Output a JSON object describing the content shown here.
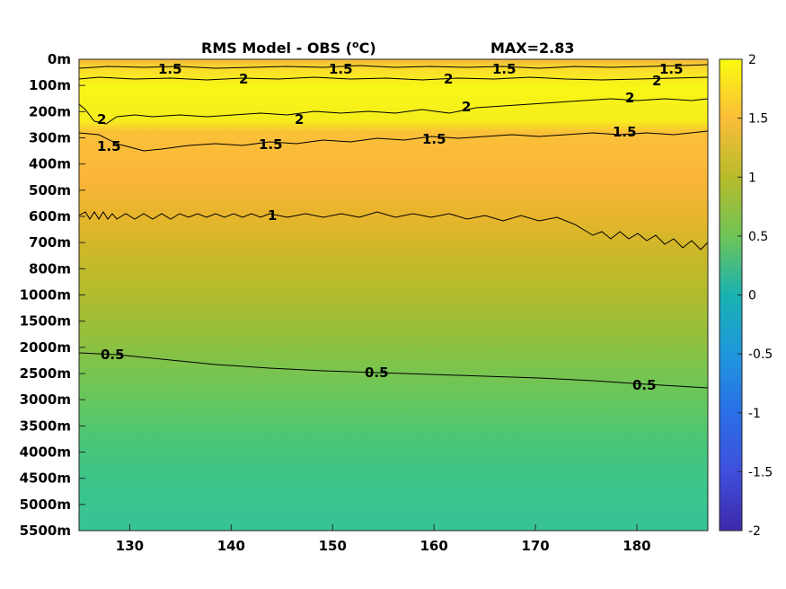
{
  "chart_data": {
    "type": "heatmap",
    "title": "RMS Model - OBS (",
    "title_unit_degree": "o",
    "title_unit_suffix": "C)",
    "annotation": "MAX=2.83",
    "x_ticks": [
      "130",
      "140",
      "150",
      "160",
      "170",
      "180"
    ],
    "x_tick_values": [
      130,
      140,
      150,
      160,
      170,
      180
    ],
    "xlim": [
      125,
      187
    ],
    "y_ticks": [
      "0m",
      "100m",
      "200m",
      "300m",
      "400m",
      "500m",
      "600m",
      "700m",
      "800m",
      "1000m",
      "1500m",
      "2000m",
      "2500m",
      "3000m",
      "3500m",
      "4000m",
      "4500m",
      "5000m",
      "5500m"
    ],
    "colorbar": {
      "range": [
        -2,
        2
      ],
      "ticks": [
        "2",
        "1.5",
        "1",
        "0.5",
        "0",
        "-0.5",
        "-1",
        "-1.5",
        "-2"
      ],
      "tick_values": [
        2,
        1.5,
        1,
        0.5,
        0,
        -0.5,
        -1,
        -1.5,
        -2
      ],
      "colormap": "parula",
      "position": "right"
    },
    "depth_profile": [
      {
        "depth": "0m",
        "value": 1.45
      },
      {
        "depth": "100m",
        "value": 2.3
      },
      {
        "depth": "200m",
        "value": 2.1
      },
      {
        "depth": "300m",
        "value": 1.45
      },
      {
        "depth": "400m",
        "value": 1.35
      },
      {
        "depth": "500m",
        "value": 1.25
      },
      {
        "depth": "600m",
        "value": 1.05
      },
      {
        "depth": "700m",
        "value": 0.95
      },
      {
        "depth": "800m",
        "value": 0.9
      },
      {
        "depth": "1000m",
        "value": 0.82
      },
      {
        "depth": "1500m",
        "value": 0.72
      },
      {
        "depth": "2000m",
        "value": 0.6
      },
      {
        "depth": "2500m",
        "value": 0.48
      },
      {
        "depth": "3000m",
        "value": 0.42
      },
      {
        "depth": "3500m",
        "value": 0.38
      },
      {
        "depth": "4000m",
        "value": 0.35
      },
      {
        "depth": "4500m",
        "value": 0.33
      },
      {
        "depth": "5000m",
        "value": 0.3
      },
      {
        "depth": "5500m",
        "value": 0.28
      }
    ],
    "contours": [
      {
        "level": 1.5,
        "label": "1.5"
      },
      {
        "level": 2,
        "label": "2"
      },
      {
        "level": 1,
        "label": "1"
      },
      {
        "level": 0.5,
        "label": "0.5"
      }
    ]
  }
}
